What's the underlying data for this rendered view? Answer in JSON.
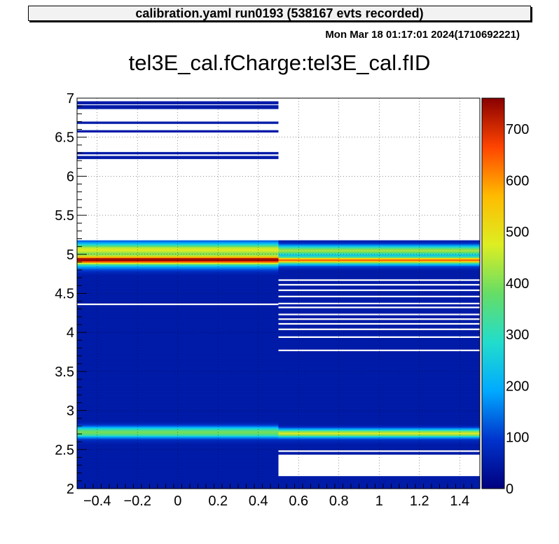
{
  "header": {
    "title": "calibration.yaml  run0193 (538167 evts recorded)"
  },
  "timestamp": "Mon Mar 18 01:17:01 2024(1710692221)",
  "chart_data": {
    "type": "heatmap",
    "title": "tel3E_cal.fCharge:tel3E_cal.fID",
    "xlabel": "",
    "ylabel": "",
    "xlim": [
      -0.5,
      1.5
    ],
    "ylim": [
      2,
      7
    ],
    "zlim": [
      0,
      760
    ],
    "grid": true,
    "x_ticks": [
      "−0.4",
      "−0.2",
      "0",
      "0.2",
      "0.4",
      "0.6",
      "0.8",
      "1",
      "1.2",
      "1.4"
    ],
    "x_tick_values": [
      -0.4,
      -0.2,
      0,
      0.2,
      0.4,
      0.6,
      0.8,
      1.0,
      1.2,
      1.4
    ],
    "y_ticks": [
      "2",
      "2.5",
      "3",
      "3.5",
      "4",
      "4.5",
      "5",
      "5.5",
      "6",
      "6.5",
      "7"
    ],
    "y_tick_values": [
      2,
      2.5,
      3,
      3.5,
      4,
      4.5,
      5,
      5.5,
      6,
      6.5,
      7
    ],
    "z_ticks": [
      "0",
      "100",
      "200",
      "300",
      "400",
      "500",
      "600",
      "700"
    ],
    "z_tick_values": [
      0,
      100,
      200,
      300,
      400,
      500,
      600,
      700
    ],
    "colormap": [
      "#00007f",
      "#0033cc",
      "#00aaff",
      "#22ddcc",
      "#66dd66",
      "#ddee22",
      "#ffbb00",
      "#ff4400",
      "#880000"
    ],
    "columns": [
      {
        "x_range": [
          -0.5,
          0.5
        ],
        "y_start": 2.0,
        "y_bin": 0.02,
        "counts": [
          50,
          50,
          50,
          50,
          50,
          50,
          50,
          50,
          50,
          50,
          50,
          50,
          50,
          50,
          50,
          50,
          50,
          50,
          50,
          50,
          50,
          50,
          50,
          50,
          50,
          50,
          50,
          50,
          50,
          60,
          70,
          90,
          140,
          220,
          320,
          380,
          390,
          350,
          280,
          190,
          120,
          80,
          60,
          50,
          50,
          50,
          50,
          50,
          50,
          50,
          50,
          50,
          50,
          50,
          50,
          50,
          50,
          50,
          50,
          50,
          50,
          50,
          50,
          50,
          50,
          50,
          50,
          50,
          50,
          50,
          50,
          50,
          50,
          50,
          50,
          50,
          50,
          50,
          50,
          50,
          50,
          50,
          50,
          50,
          50,
          50,
          50,
          50,
          50,
          50,
          50,
          50,
          50,
          50,
          50,
          50,
          50,
          50,
          50,
          50,
          50,
          50,
          50,
          50,
          50,
          50,
          50,
          50,
          50,
          50,
          50,
          50,
          50,
          50,
          50,
          50,
          50,
          50,
          50,
          50,
          50,
          50,
          50,
          50,
          50,
          50,
          50,
          50,
          50,
          50,
          50,
          50,
          50,
          50,
          50,
          50,
          50,
          60,
          70,
          90,
          120,
          160,
          220,
          320,
          480,
          660,
          760,
          720,
          560,
          440,
          400,
          430,
          470,
          480,
          440,
          360,
          270,
          200,
          140,
          0,
          0,
          0,
          0,
          0,
          0,
          0,
          0,
          0,
          0,
          0,
          0,
          0,
          0,
          0,
          0,
          0,
          0,
          0,
          0,
          0,
          0,
          0,
          0,
          0,
          0,
          0,
          0,
          0,
          0,
          0,
          0,
          0,
          0,
          0,
          0,
          0,
          0,
          0,
          0,
          0,
          0,
          0,
          0,
          0,
          0,
          0,
          0,
          0,
          0,
          0,
          0,
          0,
          0,
          0,
          0,
          0,
          0,
          0,
          0,
          0,
          0,
          0,
          0,
          0,
          0
        ],
        "isolated": [
          [
            6.22,
            6.26
          ],
          [
            6.28,
            6.31
          ],
          [
            6.56,
            6.59
          ],
          [
            6.67,
            6.7
          ],
          [
            6.86,
            6.91
          ],
          [
            6.92,
            6.96
          ]
        ],
        "empty": [
          [
            4.35,
            4.37
          ]
        ]
      },
      {
        "x_range": [
          0.5,
          1.5
        ],
        "y_start": 2.0,
        "y_bin": 0.02,
        "counts": [
          50,
          50,
          50,
          50,
          50,
          50,
          50,
          50,
          0,
          0,
          0,
          0,
          0,
          0,
          0,
          0,
          0,
          0,
          0,
          0,
          0,
          0,
          50,
          50,
          50,
          50,
          50,
          50,
          50,
          60,
          70,
          90,
          150,
          260,
          400,
          480,
          420,
          300,
          180,
          100,
          60,
          50,
          50,
          50,
          50,
          50,
          50,
          50,
          50,
          50,
          50,
          50,
          50,
          50,
          50,
          50,
          50,
          50,
          50,
          50,
          50,
          50,
          50,
          50,
          50,
          50,
          50,
          50,
          50,
          50,
          50,
          50,
          50,
          50,
          50,
          50,
          50,
          50,
          50,
          50,
          50,
          50,
          50,
          50,
          50,
          50,
          50,
          50,
          50,
          50,
          50,
          50,
          50,
          50,
          50,
          50,
          50,
          50,
          50,
          50,
          50,
          50,
          50,
          50,
          50,
          50,
          50,
          50,
          50,
          50,
          50,
          50,
          50,
          50,
          50,
          50,
          50,
          50,
          50,
          50,
          50,
          50,
          50,
          50,
          50,
          50,
          50,
          50,
          50,
          50,
          50,
          50,
          50,
          50,
          50,
          50,
          50,
          50,
          50,
          50,
          60,
          80,
          120,
          200,
          330,
          520,
          640,
          520,
          330,
          240,
          300,
          380,
          430,
          400,
          310,
          220,
          140,
          80,
          60,
          0,
          0,
          0,
          0,
          0,
          0,
          0,
          0,
          0,
          0,
          0,
          0,
          0,
          0,
          0,
          0,
          0,
          0,
          0,
          0,
          0,
          0,
          0,
          0,
          0,
          0,
          0,
          0,
          0,
          0,
          0,
          0,
          0,
          0,
          0,
          0,
          0,
          0,
          0,
          0,
          0,
          0,
          0,
          0,
          0,
          0,
          0,
          0,
          0,
          0,
          0,
          0,
          0,
          0,
          0,
          0,
          0,
          0,
          0,
          0,
          0,
          0,
          0,
          0,
          0,
          0
        ],
        "empty": [
          [
            2.47,
            2.49
          ],
          [
            3.76,
            3.78
          ],
          [
            3.93,
            3.95
          ],
          [
            4.03,
            4.05
          ],
          [
            4.1,
            4.12
          ],
          [
            4.16,
            4.18
          ],
          [
            4.22,
            4.24
          ],
          [
            4.31,
            4.33
          ],
          [
            4.36,
            4.38
          ],
          [
            4.45,
            4.47
          ],
          [
            4.53,
            4.55
          ],
          [
            4.6,
            4.62
          ],
          [
            4.66,
            4.68
          ]
        ]
      }
    ]
  }
}
